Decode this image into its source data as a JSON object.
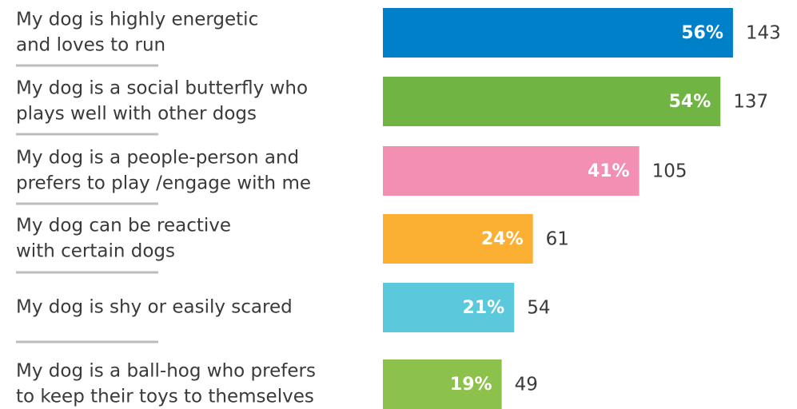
{
  "chart_data": {
    "type": "bar",
    "categories": [
      [
        "My dog is highly energetic",
        "and loves to run"
      ],
      [
        "My dog is a social butterfly who",
        "plays well with other dogs"
      ],
      [
        "My dog is a people-person and",
        "prefers to play /engage with me"
      ],
      [
        "My dog can be reactive",
        "with certain dogs"
      ],
      [
        "My dog is shy or easily scared"
      ],
      [
        "My dog is a ball-hog who prefers",
        "to keep their toys to themselves"
      ]
    ],
    "values": [
      56,
      54,
      41,
      24,
      21,
      19
    ],
    "value_labels": [
      "56%",
      "54%",
      "41%",
      "24%",
      "21%",
      "19%"
    ],
    "counts": [
      143,
      137,
      105,
      61,
      54,
      49
    ],
    "colors": [
      "#0080c8",
      "#70b544",
      "#f28fb2",
      "#fbb034",
      "#5bc8dc",
      "#8cc14b"
    ]
  }
}
